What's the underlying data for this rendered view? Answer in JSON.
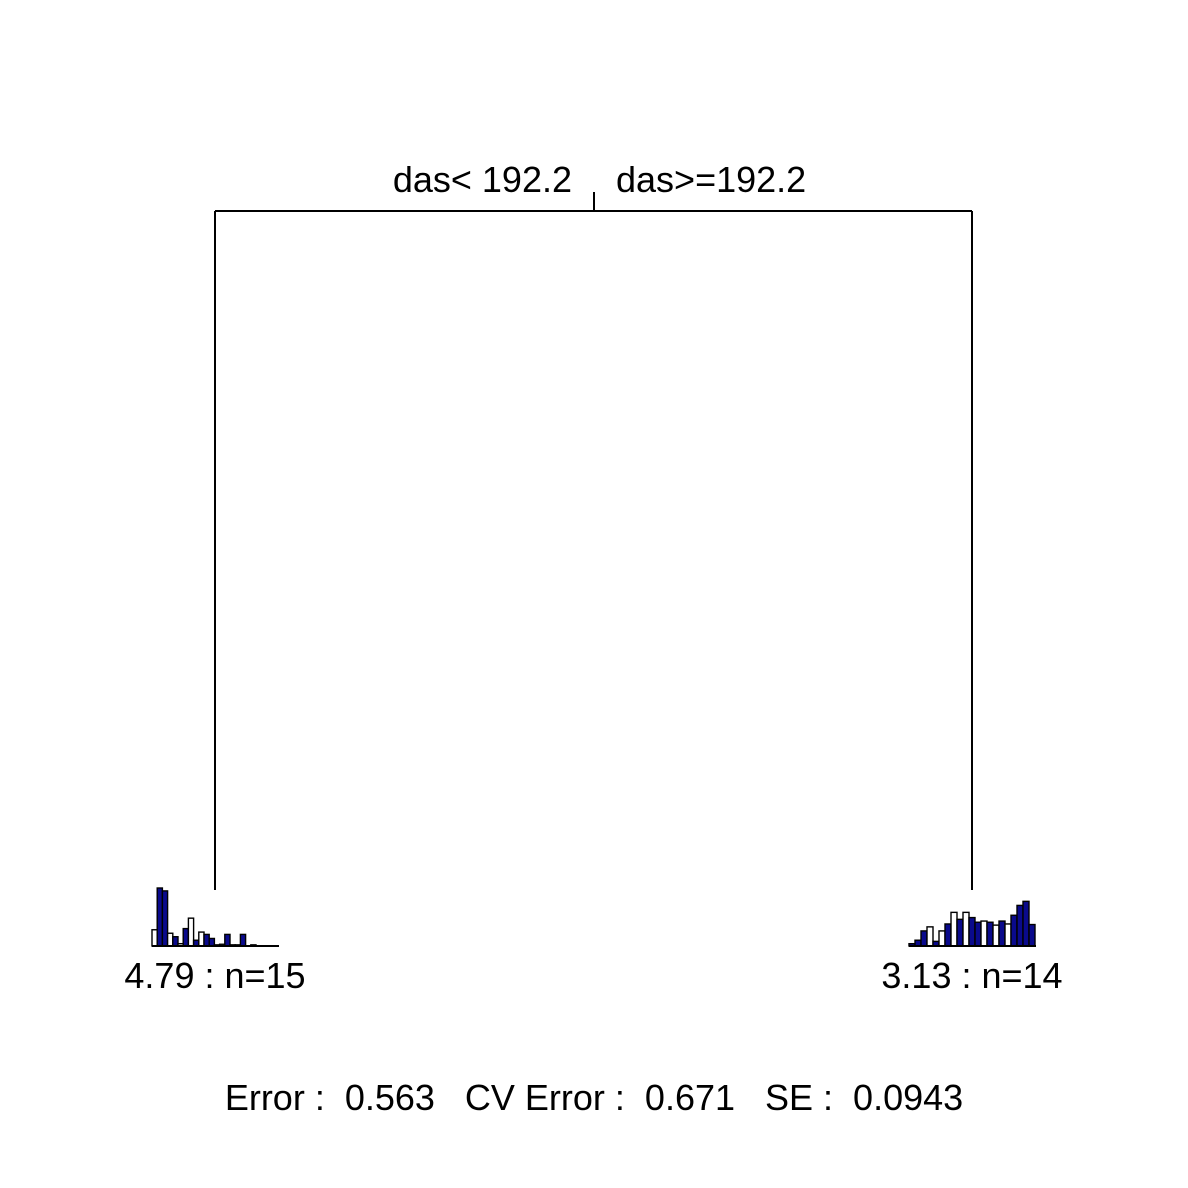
{
  "colors": {
    "background": "#ffffff",
    "line": "#000000",
    "bar_dark": "#0a0a8c",
    "bar_light": "#ffffff"
  },
  "tree": {
    "root": {
      "split_left": "das< 192.2",
      "split_right": "das>=192.2"
    },
    "leaves": [
      {
        "label": "4.79 : n=15",
        "histogram": [
          0.28,
          1.0,
          0.95,
          0.22,
          0.16,
          0.04,
          0.3,
          0.48,
          0.1,
          0.24,
          0.2,
          0.13,
          0.02,
          0.03,
          0.2,
          0.02,
          0.02,
          0.2,
          0.0,
          0.02
        ],
        "highlight": [
          false,
          true,
          true,
          false,
          true,
          false,
          true,
          false,
          true,
          false,
          true,
          true,
          false,
          false,
          true,
          false,
          false,
          true,
          false,
          false
        ]
      },
      {
        "label": "3.13 : n=14",
        "histogram": [
          0.04,
          0.1,
          0.26,
          0.33,
          0.08,
          0.26,
          0.38,
          0.58,
          0.46,
          0.58,
          0.49,
          0.41,
          0.43,
          0.41,
          0.36,
          0.43,
          0.38,
          0.53,
          0.7,
          0.77,
          0.37
        ],
        "highlight": [
          true,
          true,
          true,
          false,
          true,
          false,
          true,
          false,
          true,
          false,
          true,
          true,
          false,
          true,
          false,
          true,
          false,
          true,
          true,
          true,
          true
        ]
      }
    ]
  },
  "footer": {
    "error": "Error :  0.563   CV Error :  0.671   SE :  0.0943"
  }
}
